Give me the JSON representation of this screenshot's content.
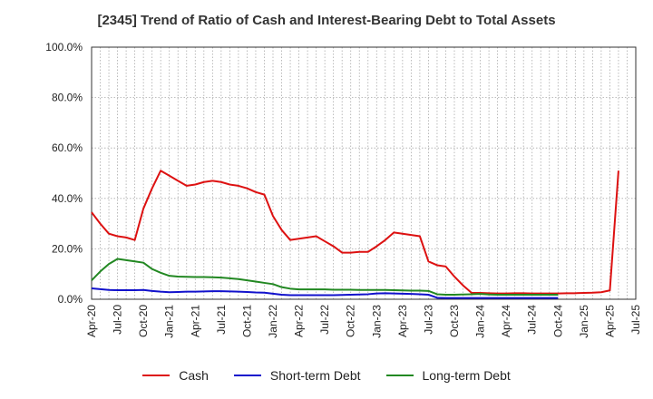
{
  "chart_data": {
    "type": "line",
    "title": "[2345]  Trend of Ratio of Cash and Interest-Bearing Debt to Total Assets",
    "xlabel": "",
    "ylabel": "",
    "ylim": [
      0,
      100
    ],
    "yticks": [
      "0.0%",
      "20.0%",
      "40.0%",
      "60.0%",
      "80.0%",
      "100.0%"
    ],
    "ytick_values": [
      0,
      20,
      40,
      60,
      80,
      100
    ],
    "grid": true,
    "legend_position": "bottom",
    "x": [
      "Apr-20",
      "May-20",
      "Jun-20",
      "Jul-20",
      "Aug-20",
      "Sep-20",
      "Oct-20",
      "Nov-20",
      "Dec-20",
      "Jan-21",
      "Feb-21",
      "Mar-21",
      "Apr-21",
      "May-21",
      "Jun-21",
      "Jul-21",
      "Aug-21",
      "Sep-21",
      "Oct-21",
      "Nov-21",
      "Dec-21",
      "Jan-22",
      "Feb-22",
      "Mar-22",
      "Apr-22",
      "May-22",
      "Jun-22",
      "Jul-22",
      "Aug-22",
      "Sep-22",
      "Oct-22",
      "Nov-22",
      "Dec-22",
      "Jan-23",
      "Feb-23",
      "Mar-23",
      "Apr-23",
      "May-23",
      "Jun-23",
      "Jul-23",
      "Aug-23",
      "Sep-23",
      "Oct-23",
      "Nov-23",
      "Dec-23",
      "Jan-24",
      "Feb-24",
      "Mar-24",
      "Apr-24",
      "May-24",
      "Jun-24",
      "Jul-24",
      "Aug-24",
      "Sep-24",
      "Oct-24",
      "Nov-24",
      "Dec-24",
      "Jan-25",
      "Feb-25",
      "Mar-25",
      "Apr-25",
      "May-25",
      "Jun-25",
      "Jul-25"
    ],
    "x_tick_labels": [
      "Apr-20",
      "Jul-20",
      "Oct-20",
      "Jan-21",
      "Apr-21",
      "Jul-21",
      "Oct-21",
      "Jan-22",
      "Apr-22",
      "Jul-22",
      "Oct-22",
      "Jan-23",
      "Apr-23",
      "Jul-23",
      "Oct-23",
      "Jan-24",
      "Apr-24",
      "Jul-24",
      "Oct-24",
      "Jan-25",
      "Apr-25",
      "Jul-25"
    ],
    "series": [
      {
        "name": "Cash",
        "color": "#dd1111",
        "values": [
          34.5,
          30.0,
          26.0,
          25.0,
          24.5,
          23.5,
          36.0,
          44.0,
          51.0,
          49.0,
          47.0,
          45.0,
          45.5,
          46.5,
          47.0,
          46.5,
          45.5,
          45.0,
          44.0,
          42.5,
          41.5,
          33.0,
          27.5,
          23.5,
          24.0,
          24.5,
          25.0,
          23.0,
          21.0,
          18.5,
          18.5,
          18.8,
          18.8,
          21.0,
          23.5,
          26.5,
          26.0,
          25.5,
          25.0,
          15.0,
          13.5,
          13.0,
          9.0,
          5.5,
          2.5,
          2.5,
          2.4,
          2.3,
          2.3,
          2.4,
          2.4,
          2.3,
          2.3,
          2.3,
          2.3,
          2.4,
          2.4,
          2.5,
          2.6,
          2.8,
          3.5,
          51.0,
          null,
          null
        ]
      },
      {
        "name": "Short-term Debt",
        "color": "#1111cc",
        "values": [
          4.3,
          4.0,
          3.7,
          3.6,
          3.6,
          3.6,
          3.7,
          3.3,
          3.0,
          2.8,
          2.9,
          3.0,
          3.0,
          3.1,
          3.2,
          3.2,
          3.1,
          3.0,
          2.9,
          2.7,
          2.6,
          2.2,
          1.8,
          1.6,
          1.6,
          1.6,
          1.6,
          1.6,
          1.6,
          1.7,
          1.8,
          1.9,
          2.0,
          2.3,
          2.4,
          2.3,
          2.2,
          2.1,
          2.0,
          1.8,
          0.6,
          0.5,
          0.5,
          0.5,
          0.5,
          0.5,
          0.5,
          0.5,
          0.5,
          0.5,
          0.5,
          0.5,
          0.5,
          0.5,
          0.5,
          null,
          null,
          null,
          null,
          null,
          null,
          null,
          null,
          null
        ]
      },
      {
        "name": "Long-term Debt",
        "color": "#228822",
        "values": [
          7.5,
          11.0,
          14.0,
          16.0,
          15.5,
          15.0,
          14.5,
          12.0,
          10.5,
          9.3,
          9.0,
          8.9,
          8.8,
          8.8,
          8.7,
          8.6,
          8.3,
          8.0,
          7.5,
          7.0,
          6.5,
          6.0,
          4.8,
          4.2,
          3.9,
          3.9,
          3.9,
          3.9,
          3.8,
          3.8,
          3.8,
          3.7,
          3.7,
          3.7,
          3.7,
          3.6,
          3.5,
          3.4,
          3.4,
          3.3,
          2.0,
          1.8,
          1.8,
          1.9,
          2.0,
          2.1,
          1.9,
          1.8,
          1.8,
          1.8,
          1.8,
          1.8,
          1.8,
          1.8,
          1.8,
          null,
          null,
          null,
          null,
          null,
          null,
          null,
          null,
          null
        ]
      }
    ]
  }
}
